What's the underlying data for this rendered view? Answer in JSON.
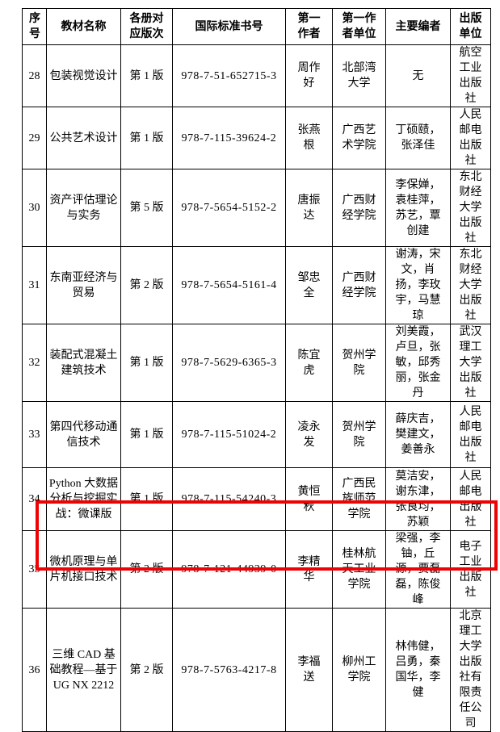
{
  "table": {
    "headers": [
      "序号",
      "教材名称",
      "各册对应版次",
      "国际标准书号",
      "第一作者",
      "第一作者单位",
      "主要编者",
      "出版单位"
    ],
    "rows": [
      {
        "no": "28",
        "title": "包装视觉设计",
        "edition": "第 1 版",
        "isbn": "978-7-51-652715-3",
        "author": "周作好",
        "author_org": "北部湾大学",
        "editors": "无",
        "publisher": "航空工业出版社"
      },
      {
        "no": "29",
        "title": "公共艺术设计",
        "edition": "第 1 版",
        "isbn": "978-7-115-39624-2",
        "author": "张燕根",
        "author_org": "广西艺术学院",
        "editors": "丁硕赜，张泽佳",
        "publisher": "人民邮电出版社"
      },
      {
        "no": "30",
        "title": "资产评估理论与实务",
        "edition": "第 5 版",
        "isbn": "978-7-5654-5152-2",
        "author": "唐振达",
        "author_org": "广西财经学院",
        "editors": "李保婵，袁桂萍，苏艺，覃创建",
        "publisher": "东北财经大学出版社"
      },
      {
        "no": "31",
        "title": "东南亚经济与贸易",
        "edition": "第 2 版",
        "isbn": "978-7-5654-5161-4",
        "author": "邹忠全",
        "author_org": "广西财经学院",
        "editors": "谢涛，宋文，肖扬，李玫宇，马慧琼",
        "publisher": "东北财经大学出版社"
      },
      {
        "no": "32",
        "title": "装配式混凝土建筑技术",
        "edition": "第 1 版",
        "isbn": "978-7-5629-6365-3",
        "author": "陈宜虎",
        "author_org": "贺州学院",
        "editors": "刘美霞，卢旦，张敏，邱秀丽，张金丹",
        "publisher": "武汉理工大学出版社"
      },
      {
        "no": "33",
        "title": "第四代移动通信技术",
        "edition": "第 1 版",
        "isbn": "978-7-115-51024-2",
        "author": "凌永发",
        "author_org": "贺州学院",
        "editors": "薛庆吉，樊建文，姜善永",
        "publisher": "人民邮电出版社"
      },
      {
        "no": "34",
        "title": "Python 大数据分析与挖掘实战：微课版",
        "edition": "第 1 版",
        "isbn": "978-7-115-54240-3",
        "author": "黄恒秋",
        "author_org": "广西民族师范学院",
        "editors": "莫洁安，谢东津，张良均，苏颖",
        "publisher": "人民邮电出版社"
      },
      {
        "no": "35",
        "title": "微机原理与单片机接口技术",
        "edition": "第 2 版",
        "isbn": "978-7-121-44939-0",
        "author": "李精华",
        "author_org": "桂林航天工业学院",
        "editors": "梁强，李铀，丘源，贾磊磊，陈俊峰",
        "publisher": "电子工业出版社"
      },
      {
        "no": "36",
        "title": "三维 CAD 基础教程—基于 UG NX 2212",
        "edition": "第 2 版",
        "isbn": "978-7-5763-4217-8",
        "author": "李福送",
        "author_org": "柳州工学院",
        "editors": "林伟健，吕勇，秦国华，李健",
        "publisher": "北京理工大学出版社有限责任公司"
      }
    ]
  },
  "highlight": {
    "highlighted_row_no": "35",
    "color": "#ee0202"
  }
}
